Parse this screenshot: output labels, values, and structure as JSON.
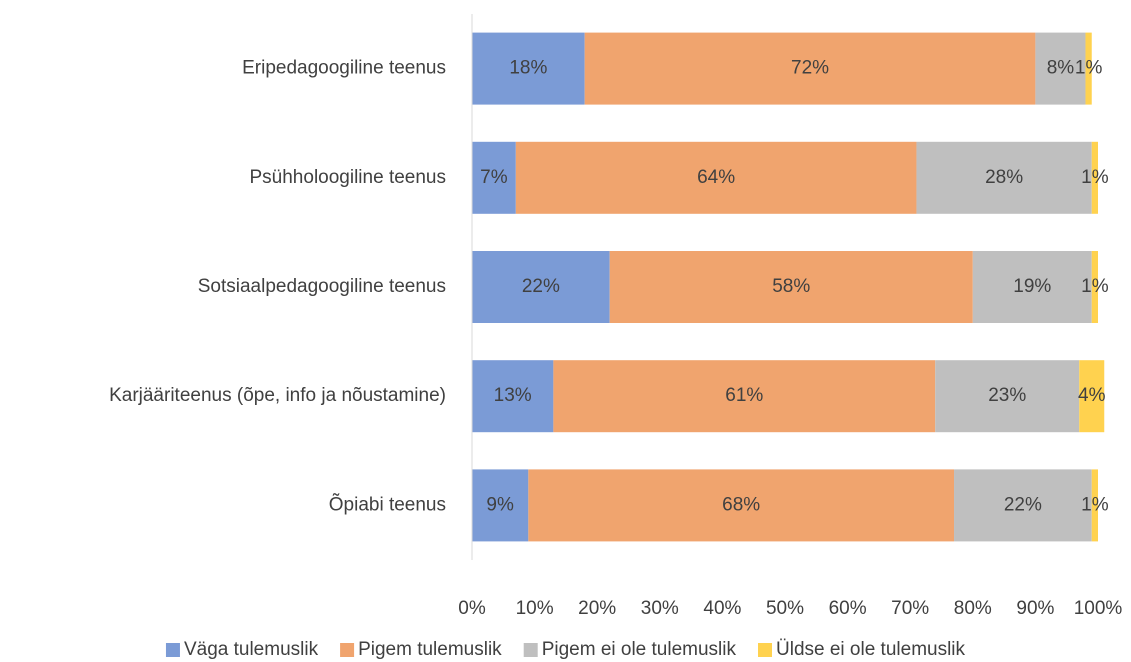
{
  "chart_data": {
    "type": "stacked_bar_horizontal",
    "categories": [
      "Eripedagoogiline teenus",
      "Psühholoogiline teenus",
      "Sotsiaalpedagoogiline teenus",
      "Karjääriteenus (õpe, info ja nõustamine)",
      "Õpiabi teenus"
    ],
    "series": [
      {
        "name": "Väga tulemuslik",
        "color": "#7b9bd6",
        "values": [
          18,
          7,
          22,
          13,
          9
        ],
        "value_labels": [
          "18%",
          "7%",
          "22%",
          "13%",
          "9%"
        ]
      },
      {
        "name": "Pigem tulemuslik",
        "color": "#f0a46e",
        "values": [
          72,
          64,
          58,
          61,
          68
        ],
        "value_labels": [
          "72%",
          "64%",
          "58%",
          "61%",
          "68%"
        ]
      },
      {
        "name": "Pigem ei ole tulemuslik",
        "color": "#bfbfbf",
        "values": [
          8,
          28,
          19,
          23,
          22
        ],
        "value_labels": [
          "8%",
          "28%",
          "19%",
          "23%",
          "22%"
        ]
      },
      {
        "name": "Üldse ei ole tulemuslik",
        "color": "#ffd24f",
        "values": [
          1,
          1,
          1,
          4,
          1
        ],
        "value_labels": [
          "1%",
          "1%",
          "1%",
          "4%",
          "1%"
        ]
      }
    ],
    "xlim": [
      0,
      100
    ],
    "xticks": [
      {
        "value": 0,
        "label": "0%"
      },
      {
        "value": 10,
        "label": "10%"
      },
      {
        "value": 20,
        "label": "20%"
      },
      {
        "value": 30,
        "label": "30%"
      },
      {
        "value": 40,
        "label": "40%"
      },
      {
        "value": 50,
        "label": "50%"
      },
      {
        "value": 60,
        "label": "60%"
      },
      {
        "value": 70,
        "label": "70%"
      },
      {
        "value": 80,
        "label": "80%"
      },
      {
        "value": 90,
        "label": "90%"
      },
      {
        "value": 100,
        "label": "100%"
      }
    ],
    "grid": false,
    "legend": "bottom"
  }
}
